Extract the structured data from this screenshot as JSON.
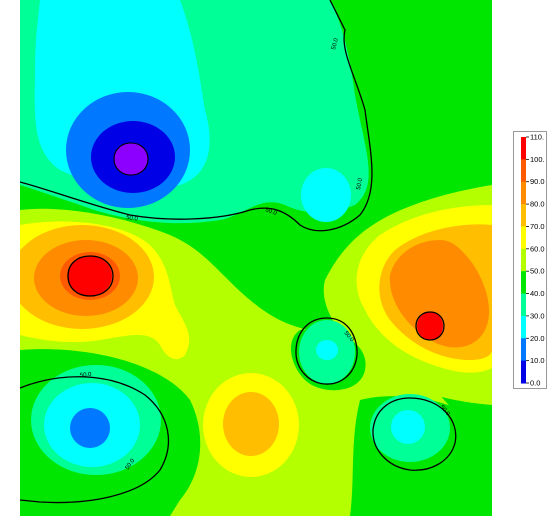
{
  "chart_data": {
    "type": "heatmap",
    "subtype": "filled-contour",
    "title": "",
    "xlabel": "",
    "ylabel": "",
    "colorbar": {
      "position": "right",
      "ticks": [
        {
          "value": 110,
          "label": "110.",
          "color": "#ff0000"
        },
        {
          "value": 100,
          "label": "100.",
          "color": "#ff5a00"
        },
        {
          "value": 90,
          "label": "90.0",
          "color": "#ff8c00"
        },
        {
          "value": 80,
          "label": "80.0",
          "color": "#ffbe00"
        },
        {
          "value": 70,
          "label": "70.0",
          "color": "#ffff00"
        },
        {
          "value": 60,
          "label": "60.0",
          "color": "#b4ff00"
        },
        {
          "value": 50,
          "label": "50.0",
          "color": "#00e600"
        },
        {
          "value": 40,
          "label": "40.0",
          "color": "#00ff96"
        },
        {
          "value": 30,
          "label": "30.0",
          "color": "#00ffff"
        },
        {
          "value": 20,
          "label": "20.0",
          "color": "#0078ff"
        },
        {
          "value": 10,
          "label": "10.0",
          "color": "#0000e6"
        },
        {
          "value": 0,
          "label": "0.0",
          "color": "#8c00ff"
        }
      ]
    },
    "contour_labels": [
      "50.0",
      "50.0",
      "50.0",
      "50.0",
      "50.0",
      "50.0",
      "50.0",
      "50.0"
    ],
    "features": [
      {
        "kind": "minimum",
        "value": 5,
        "location": "upper-left"
      },
      {
        "kind": "maximum",
        "value": 110,
        "location": "left"
      },
      {
        "kind": "maximum",
        "value": 110,
        "location": "right"
      },
      {
        "kind": "minimum",
        "value": 30,
        "location": "center"
      },
      {
        "kind": "minimum",
        "value": 30,
        "location": "upper-center"
      },
      {
        "kind": "minimum",
        "value": 25,
        "location": "lower-left"
      },
      {
        "kind": "minimum",
        "value": 30,
        "location": "lower-right"
      },
      {
        "kind": "maximum",
        "value": 90,
        "location": "lower-center"
      }
    ]
  }
}
